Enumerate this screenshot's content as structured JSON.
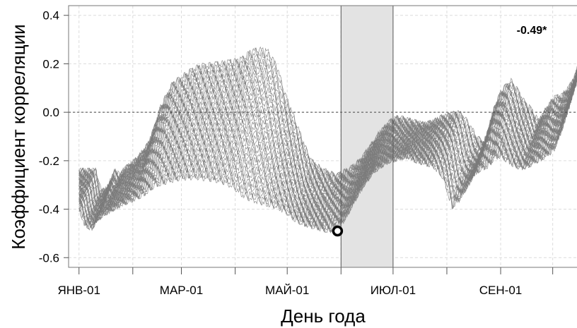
{
  "chart_data": {
    "type": "line",
    "title": "",
    "xlabel": "День года",
    "ylabel": "Коэффициент корреляции",
    "x_tick_labels": [
      "ЯНВ-01",
      "МАР-01",
      "МАЙ-01",
      "ИЮЛ-01",
      "СЕН-01"
    ],
    "x_tick_days": [
      1,
      60,
      121,
      182,
      244
    ],
    "x_minor_tick_days": [
      32,
      91,
      152,
      213,
      274
    ],
    "xlim": [
      -5,
      288
    ],
    "ylim": [
      -0.64,
      0.44
    ],
    "y_ticks": [
      -0.6,
      -0.4,
      -0.2,
      0.0,
      0.2,
      0.4
    ],
    "y_tick_labels": [
      "-0.6",
      "-0.4",
      "-0.2",
      "0.0",
      "0.2",
      "0.4"
    ],
    "grid": true,
    "reference_line": {
      "y": 0.0,
      "style": "dashed"
    },
    "highlight_band": {
      "x_start": 152,
      "x_end": 182,
      "color": "#e3e3e3"
    },
    "min_marker": {
      "x": 150,
      "y": -0.49
    },
    "annotation": "-0.49*",
    "series_color": "#7a7a7a",
    "band_lines": 40,
    "envelope": {
      "x": [
        1,
        4,
        8,
        12,
        15,
        18,
        25,
        32,
        38,
        45,
        55,
        60,
        70,
        80,
        85,
        90,
        95,
        100,
        105,
        110,
        115,
        120,
        125,
        130,
        135,
        140,
        145,
        150,
        155,
        160,
        165,
        170,
        175,
        180,
        185,
        190,
        195,
        200,
        205,
        210,
        213,
        216,
        220,
        225,
        228,
        231,
        234,
        237,
        240,
        244,
        248,
        252,
        256,
        260,
        265,
        270,
        275,
        280,
        284,
        288
      ],
      "upper": [
        -0.24,
        -0.33,
        -0.31,
        -0.24,
        -0.26,
        -0.23,
        -0.19,
        -0.12,
        0.02,
        0.12,
        0.17,
        0.19,
        0.2,
        0.21,
        0.22,
        0.25,
        0.26,
        0.25,
        0.19,
        0.07,
        -0.02,
        -0.12,
        -0.2,
        -0.23,
        -0.25,
        -0.26,
        -0.24,
        -0.22,
        -0.18,
        -0.13,
        -0.08,
        -0.04,
        -0.02,
        -0.03,
        -0.04,
        -0.05,
        -0.04,
        -0.02,
        -0.01,
        0.0,
        -0.02,
        -0.05,
        -0.1,
        -0.13,
        -0.07,
        0.03,
        0.08,
        0.11,
        0.13,
        0.09,
        0.04,
        0.01,
        -0.04,
        0.01,
        0.06,
        0.07,
        0.12,
        0.2,
        0.28,
        0.3
      ],
      "lower": [
        -0.4,
        -0.46,
        -0.48,
        -0.44,
        -0.42,
        -0.41,
        -0.38,
        -0.36,
        -0.34,
        -0.3,
        -0.28,
        -0.27,
        -0.27,
        -0.28,
        -0.29,
        -0.31,
        -0.34,
        -0.36,
        -0.37,
        -0.38,
        -0.39,
        -0.41,
        -0.44,
        -0.46,
        -0.47,
        -0.48,
        -0.49,
        -0.48,
        -0.43,
        -0.36,
        -0.3,
        -0.25,
        -0.22,
        -0.2,
        -0.19,
        -0.18,
        -0.2,
        -0.21,
        -0.22,
        -0.26,
        -0.32,
        -0.39,
        -0.36,
        -0.3,
        -0.26,
        -0.24,
        -0.23,
        -0.22,
        -0.19,
        -0.18,
        -0.2,
        -0.22,
        -0.23,
        -0.22,
        -0.2,
        -0.18,
        -0.15,
        -0.05,
        0.05,
        0.18
      ]
    }
  }
}
